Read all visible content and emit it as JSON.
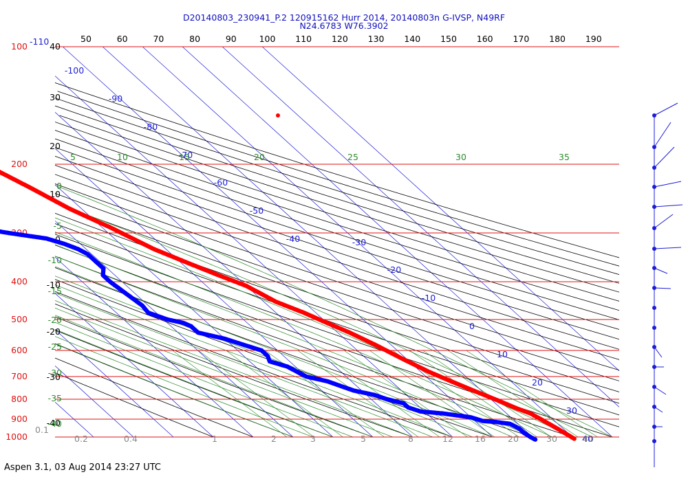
{
  "header": {
    "title_line1": "D20140803_230941_P.2 120915162 Hurr 2014, 20140803n G-IVSP, N49RF",
    "title_line2": "N24.6783 W76.3902"
  },
  "footer": {
    "text": "Aspen 3.1, 03 Aug 2014  23:27 UTC"
  },
  "chart_data": {
    "type": "scatter",
    "title": "D20140803_230941_P.2 120915162 Hurr 2014, 20140803n G-IVSP, N49RF",
    "subtitle": "N24.6783 W76.3902",
    "top_axis": {
      "ticks": [
        50,
        60,
        70,
        80,
        90,
        100,
        110,
        120,
        130,
        140,
        150,
        160,
        170,
        180,
        190
      ]
    },
    "left_axis": {
      "scale": "log",
      "pressure_ticks": [
        100,
        200,
        300,
        400,
        500,
        600,
        700,
        800,
        900,
        1000
      ],
      "extra_labels": [
        {
          "text": "-110",
          "at": 100
        }
      ]
    },
    "left_alt_labels": [
      "40",
      "30",
      "20",
      "10",
      "0",
      "-10",
      "-20",
      "-30",
      "-40"
    ],
    "isotherm_labels": [
      "-100",
      "-90",
      "-80",
      "-70",
      "-60",
      "-50",
      "-40",
      "-30",
      "-20",
      "-10",
      "0",
      "10",
      "20",
      "30",
      "40"
    ],
    "theta_e_labels": [
      "5",
      "10",
      "15",
      "20",
      "25",
      "30",
      "35"
    ],
    "left_green_labels": [
      "0",
      "-5",
      "-10",
      "-15",
      "-20",
      "-25",
      "-30",
      "-35",
      "-40"
    ],
    "mixing_ratio_labels": [
      "0.1",
      "0.2",
      "0.4",
      "1",
      "2",
      "3",
      "5",
      "8",
      "12",
      "16",
      "20",
      "30",
      "40"
    ],
    "series": [
      {
        "color": "#ff0000",
        "x": [
          -47,
          -45.5,
          -42,
          -37,
          -33,
          -28,
          -23,
          -18,
          -14,
          -10,
          -7,
          -3,
          0,
          3,
          6,
          9,
          12,
          15,
          18,
          21,
          24,
          26,
          27,
          28.5,
          30
        ],
        "y": [
          175,
          180,
          200,
          230,
          260,
          290,
          330,
          360,
          385,
          410,
          450,
          480,
          510,
          540,
          580,
          630,
          680,
          720,
          760,
          800,
          845,
          870,
          900,
          950,
          1010
        ]
      },
      {
        "color": "#0000ff",
        "x": [
          -73,
          -70,
          -70,
          -71,
          -72,
          -72,
          -73,
          -73,
          -72,
          -71,
          -70,
          -68,
          -66,
          -62,
          -55,
          -47,
          -44,
          -42,
          -41,
          -41,
          -41,
          -41,
          -43,
          -43,
          -42.5,
          -42,
          -41.5,
          -42,
          -39,
          -36,
          -35,
          -35,
          -30,
          -27,
          -24,
          -24,
          -25,
          -22,
          -21,
          -20,
          -16,
          -14,
          -12,
          -8,
          -6,
          -3,
          -3,
          -1,
          4,
          7,
          10,
          11,
          12,
          15,
          18,
          19,
          19,
          19.5,
          20
        ],
        "y": [
          200,
          205,
          210,
          215,
          220,
          225,
          230,
          240,
          250,
          258,
          265,
          275,
          282,
          290,
          300,
          310,
          320,
          330,
          340,
          350,
          360,
          370,
          385,
          400,
          420,
          440,
          460,
          480,
          500,
          510,
          520,
          540,
          560,
          580,
          600,
          620,
          640,
          660,
          680,
          700,
          720,
          740,
          760,
          780,
          800,
          820,
          840,
          860,
          870,
          880,
          890,
          900,
          910,
          915,
          925,
          950,
          975,
          1000,
          1015
        ]
      }
    ],
    "wind_barb_count": 18
  }
}
